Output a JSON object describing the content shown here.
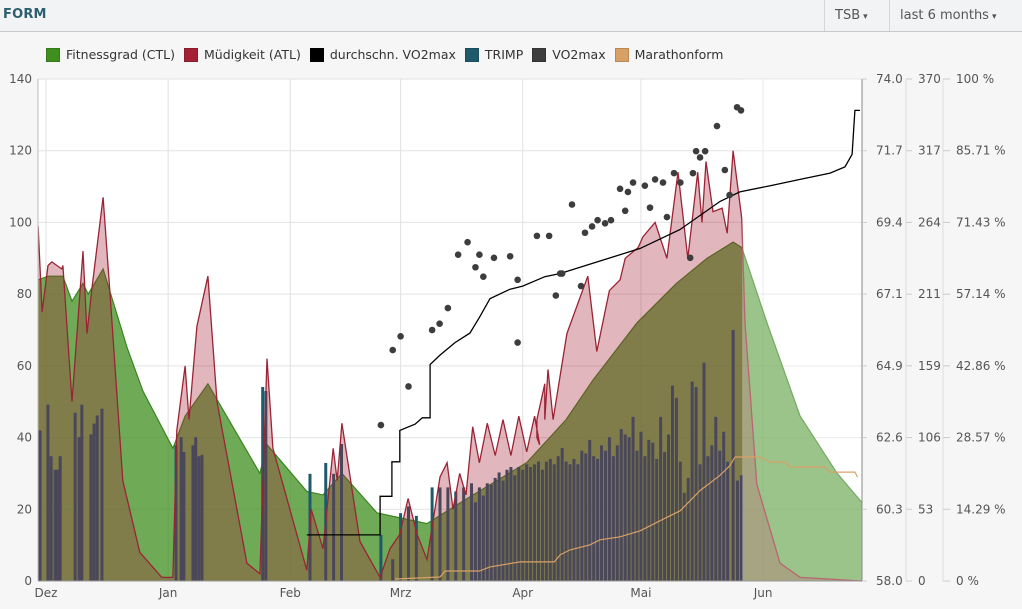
{
  "header": {
    "title": "FORM",
    "metric_select": "TSB",
    "range_select": "last 6 months"
  },
  "colors": {
    "ctl": "#3f8f1f",
    "atl": "#a32035",
    "avg_vo2": "#000000",
    "trimp": "#1f5a6b",
    "vo2": "#3d3d3d",
    "marathon": "#d9a066"
  },
  "chart_data": {
    "type": "area",
    "title": "FORM",
    "legend_position": "top-left",
    "legend": [
      "Fitnessgrad (CTL)",
      "Müdigkeit (ATL)",
      "durchschn. VO2max",
      "TRIMP",
      "VO2max",
      "Marathonform"
    ],
    "x_unit": "days since 1 Dec",
    "x_ticks": [
      {
        "day": 0,
        "label": "Dez"
      },
      {
        "day": 31,
        "label": "Jan"
      },
      {
        "day": 62,
        "label": "Feb"
      },
      {
        "day": 90,
        "label": "Mrz"
      },
      {
        "day": 121,
        "label": "Apr"
      },
      {
        "day": 151,
        "label": "Mai"
      },
      {
        "day": 182,
        "label": "Jun"
      }
    ],
    "xlim": [
      -2,
      207
    ],
    "y_left": {
      "ylim": [
        0,
        140
      ],
      "ticks": [
        "0",
        "20",
        "40",
        "60",
        "80",
        "100",
        "120",
        "140"
      ]
    },
    "y_vo2": {
      "ylim": [
        58,
        74
      ],
      "ticks": [
        "58.0",
        "60.3",
        "62.6",
        "64.9",
        "67.1",
        "69.4",
        "71.7",
        "74.0"
      ]
    },
    "y_trimp": {
      "ylim": [
        0,
        370
      ],
      "ticks": [
        "0",
        "53",
        "106",
        "159",
        "211",
        "264",
        "317",
        "370"
      ]
    },
    "y_pct": {
      "ylim": [
        0,
        100
      ],
      "ticks": [
        "0 %",
        "14.29 %",
        "28.57 %",
        "42.86 %",
        "57.14 %",
        "71.43 %",
        "85.71 %",
        "100 %"
      ]
    },
    "grid": true,
    "series": {
      "ctl": [
        [
          -2,
          84
        ],
        [
          0.5,
          85
        ],
        [
          4.3,
          85
        ],
        [
          6.6,
          78
        ],
        [
          9.4,
          83
        ],
        [
          10.7,
          80
        ],
        [
          14.5,
          87
        ],
        [
          20.6,
          65
        ],
        [
          24.6,
          53
        ],
        [
          32.2,
          37
        ],
        [
          35.3,
          46
        ],
        [
          41.1,
          55
        ],
        [
          54.3,
          30
        ],
        [
          56.1,
          38
        ],
        [
          66.2,
          25
        ],
        [
          70.3,
          24
        ],
        [
          75.1,
          30
        ],
        [
          84,
          19
        ],
        [
          96.7,
          16
        ],
        [
          106.9,
          23
        ],
        [
          122,
          33
        ],
        [
          132,
          45
        ],
        [
          138.8,
          56
        ],
        [
          150,
          72
        ],
        [
          160,
          83
        ],
        [
          167.8,
          90
        ],
        [
          174.4,
          94.5
        ],
        [
          176.6,
          93
        ],
        [
          183,
          72
        ],
        [
          191.4,
          46
        ],
        [
          200.8,
          30
        ],
        [
          207,
          22
        ]
      ],
      "atl": [
        [
          -2,
          99
        ],
        [
          -1,
          75
        ],
        [
          0.5,
          88
        ],
        [
          1.5,
          89
        ],
        [
          4,
          87
        ],
        [
          4.3,
          88
        ],
        [
          6.6,
          50
        ],
        [
          9.4,
          92
        ],
        [
          10.4,
          69
        ],
        [
          11.7,
          82
        ],
        [
          14.5,
          107
        ],
        [
          16.2,
          81
        ],
        [
          19.5,
          28
        ],
        [
          23.8,
          8
        ],
        [
          29.4,
          1
        ],
        [
          32.2,
          1
        ],
        [
          33.2,
          42
        ],
        [
          35.3,
          60
        ],
        [
          36.3,
          45
        ],
        [
          38.3,
          71
        ],
        [
          41.1,
          85
        ],
        [
          43.4,
          50
        ],
        [
          51,
          5
        ],
        [
          54.3,
          2
        ],
        [
          56.1,
          62
        ],
        [
          57.6,
          37
        ],
        [
          66.2,
          3
        ],
        [
          67.3,
          20
        ],
        [
          70.3,
          9
        ],
        [
          72.9,
          37
        ],
        [
          73.9,
          28
        ],
        [
          75.1,
          44
        ],
        [
          79.7,
          11
        ],
        [
          84.8,
          1
        ],
        [
          87.3,
          9
        ],
        [
          89.8,
          13
        ],
        [
          91.9,
          23
        ],
        [
          94.2,
          13
        ],
        [
          96.7,
          6
        ],
        [
          100,
          29
        ],
        [
          101.8,
          33
        ],
        [
          103.3,
          20
        ],
        [
          105,
          30
        ],
        [
          106.6,
          24
        ],
        [
          108.3,
          43
        ],
        [
          110,
          33
        ],
        [
          112,
          44
        ],
        [
          114,
          35
        ],
        [
          116,
          45
        ],
        [
          118,
          35
        ],
        [
          120,
          46
        ],
        [
          122,
          36
        ],
        [
          124,
          46
        ],
        [
          125.3,
          38
        ],
        [
          124.6,
          40
        ],
        [
          124.6,
          45
        ],
        [
          126.6,
          55
        ],
        [
          126.6,
          45
        ],
        [
          127.4,
          59
        ],
        [
          128.7,
          45
        ],
        [
          132.2,
          69
        ],
        [
          137.5,
          85
        ],
        [
          139.8,
          64
        ],
        [
          143,
          81
        ],
        [
          145.7,
          84
        ],
        [
          147,
          90
        ],
        [
          150.3,
          93
        ],
        [
          151.5,
          96
        ],
        [
          154.6,
          100
        ],
        [
          157.6,
          90
        ],
        [
          160.4,
          114
        ],
        [
          162.9,
          90
        ],
        [
          165.4,
          114
        ],
        [
          166.5,
          100
        ],
        [
          167.5,
          117
        ],
        [
          169.3,
          103
        ],
        [
          171.6,
          104
        ],
        [
          172.9,
          97
        ],
        [
          174.4,
          120
        ],
        [
          176.6,
          101
        ],
        [
          177.4,
          72
        ],
        [
          180.4,
          27
        ],
        [
          186.3,
          5
        ],
        [
          191.4,
          1
        ],
        [
          207,
          0
        ]
      ],
      "trimp": [
        [
          -1.5,
          111
        ],
        [
          0.5,
          130
        ],
        [
          1.3,
          92
        ],
        [
          2.3,
          82
        ],
        [
          3,
          82
        ],
        [
          3.6,
          92
        ],
        [
          7.4,
          124
        ],
        [
          8.4,
          106
        ],
        [
          9.1,
          130
        ],
        [
          11.4,
          108
        ],
        [
          12.2,
          116
        ],
        [
          13,
          122
        ],
        [
          14.2,
          127
        ],
        [
          33,
          100
        ],
        [
          34.3,
          106
        ],
        [
          35,
          95
        ],
        [
          37.3,
          100
        ],
        [
          38,
          106
        ],
        [
          38.8,
          92
        ],
        [
          39.6,
          93
        ],
        [
          55,
          143
        ],
        [
          55.8,
          140
        ],
        [
          67,
          79
        ],
        [
          71,
          87
        ],
        [
          73,
          79
        ],
        [
          75,
          101
        ],
        [
          85,
          34
        ],
        [
          88,
          16
        ],
        [
          90,
          50
        ],
        [
          92,
          55
        ],
        [
          94,
          48
        ],
        [
          98,
          69
        ],
        [
          100,
          69
        ],
        [
          102,
          69
        ],
        [
          104,
          66
        ],
        [
          106,
          69
        ],
        [
          108,
          72
        ],
        [
          109,
          58
        ],
        [
          110,
          69
        ],
        [
          111,
          63
        ],
        [
          112,
          72
        ],
        [
          113,
          71
        ],
        [
          114,
          76
        ],
        [
          115,
          80
        ],
        [
          116,
          74
        ],
        [
          117,
          82
        ],
        [
          118,
          84
        ],
        [
          119,
          78
        ],
        [
          120,
          84
        ],
        [
          121,
          82
        ],
        [
          122,
          86
        ],
        [
          123,
          84
        ],
        [
          124,
          86
        ],
        [
          125,
          88
        ],
        [
          126,
          82
        ],
        [
          127,
          88
        ],
        [
          128,
          90
        ],
        [
          129,
          86
        ],
        [
          130,
          92
        ],
        [
          131,
          98
        ],
        [
          132,
          88
        ],
        [
          133,
          86
        ],
        [
          134,
          90
        ],
        [
          135,
          86
        ],
        [
          136,
          96
        ],
        [
          137,
          94
        ],
        [
          138,
          104
        ],
        [
          139,
          92
        ],
        [
          140,
          90
        ],
        [
          141,
          100
        ],
        [
          142,
          96
        ],
        [
          143,
          106
        ],
        [
          144,
          92
        ],
        [
          145,
          100
        ],
        [
          146,
          112
        ],
        [
          147,
          108
        ],
        [
          148,
          106
        ],
        [
          149,
          121
        ],
        [
          150,
          96
        ],
        [
          151,
          110
        ],
        [
          152,
          92
        ],
        [
          153,
          104
        ],
        [
          154,
          102
        ],
        [
          155,
          90
        ],
        [
          156,
          121
        ],
        [
          157,
          95
        ],
        [
          158,
          108
        ],
        [
          159,
          144
        ],
        [
          160,
          135
        ],
        [
          161,
          88
        ],
        [
          162,
          65
        ],
        [
          163,
          76
        ],
        [
          164,
          147
        ],
        [
          165,
          143
        ],
        [
          166,
          86
        ],
        [
          167,
          161
        ],
        [
          168,
          92
        ],
        [
          169,
          100
        ],
        [
          170,
          121
        ],
        [
          171,
          96
        ],
        [
          172,
          110
        ],
        [
          173,
          88
        ],
        [
          174.4,
          185
        ],
        [
          175.5,
          74
        ],
        [
          176.5,
          78
        ]
      ],
      "avg_vo2": [
        [
          66.2,
          59.47
        ],
        [
          84.8,
          59.47
        ],
        [
          84.8,
          60.7
        ],
        [
          87.8,
          60.7
        ],
        [
          87.8,
          61.8
        ],
        [
          89.8,
          61.8
        ],
        [
          89.8,
          62.8
        ],
        [
          93.7,
          63.0
        ],
        [
          95.5,
          63.2
        ],
        [
          97.5,
          63.2
        ],
        [
          97.5,
          64.9
        ],
        [
          100,
          65.2
        ],
        [
          103.8,
          65.6
        ],
        [
          107.6,
          65.9
        ],
        [
          110,
          66.4
        ],
        [
          112.7,
          67.0
        ],
        [
          117.8,
          67.3
        ],
        [
          121,
          67.4
        ],
        [
          126.6,
          67.7
        ],
        [
          130.5,
          67.8
        ],
        [
          140.6,
          68.2
        ],
        [
          150.8,
          68.6
        ],
        [
          160.9,
          69.2
        ],
        [
          171.1,
          70.1
        ],
        [
          176.1,
          70.4
        ],
        [
          183.8,
          70.6
        ],
        [
          191.4,
          70.8
        ],
        [
          199,
          71.0
        ],
        [
          202.8,
          71.2
        ],
        [
          204.6,
          71.6
        ],
        [
          205.3,
          73.0
        ],
        [
          206.6,
          73.0
        ]
      ],
      "vo2": [
        [
          85,
          62.97
        ],
        [
          88,
          65.36
        ],
        [
          90,
          65.8
        ],
        [
          92,
          64.2
        ],
        [
          98,
          66
        ],
        [
          99.9,
          66.2
        ],
        [
          102,
          66.7
        ],
        [
          104.6,
          68.4
        ],
        [
          107,
          68.8
        ],
        [
          109,
          68
        ],
        [
          110,
          68.4
        ],
        [
          111,
          67.7
        ],
        [
          113.7,
          68.3
        ],
        [
          117.8,
          68.35
        ],
        [
          119.7,
          67.6
        ],
        [
          119.7,
          65.6
        ],
        [
          124.6,
          69
        ],
        [
          127.7,
          69
        ],
        [
          129.4,
          67.1
        ],
        [
          130.5,
          67.8
        ],
        [
          131,
          67.8
        ],
        [
          133.5,
          70
        ],
        [
          135.8,
          67.4
        ],
        [
          136.8,
          69.1
        ],
        [
          138.6,
          69.3
        ],
        [
          140,
          69.5
        ],
        [
          141.9,
          69.4
        ],
        [
          143.4,
          69.5
        ],
        [
          145.7,
          70.5
        ],
        [
          147,
          69.8
        ],
        [
          147.7,
          70.4
        ],
        [
          149,
          70.7
        ],
        [
          152,
          70.6
        ],
        [
          153.3,
          69.9
        ],
        [
          154.6,
          70.8
        ],
        [
          156.6,
          70.7
        ],
        [
          157.6,
          69.6
        ],
        [
          159.4,
          71
        ],
        [
          161,
          70.7
        ],
        [
          163.5,
          68.3
        ],
        [
          164.2,
          71
        ],
        [
          165,
          71.7
        ],
        [
          166,
          71.5
        ],
        [
          167.3,
          71.7
        ],
        [
          170.3,
          72.5
        ],
        [
          172.3,
          71.1
        ],
        [
          173.5,
          70.3
        ],
        [
          175.4,
          73.1
        ],
        [
          176.4,
          73
        ]
      ],
      "marathon": [
        [
          88.6,
          0.4
        ],
        [
          100,
          0.8
        ],
        [
          101.3,
          2
        ],
        [
          110,
          2
        ],
        [
          112.7,
          2.8
        ],
        [
          120.3,
          3.8
        ],
        [
          129,
          3.8
        ],
        [
          130.5,
          5.2
        ],
        [
          133,
          6.2
        ],
        [
          138,
          7.2
        ],
        [
          140.6,
          8.2
        ],
        [
          145.7,
          8.8
        ],
        [
          150.8,
          10
        ],
        [
          155.8,
          12
        ],
        [
          161,
          14
        ],
        [
          166,
          18
        ],
        [
          171,
          21
        ],
        [
          173.6,
          23
        ],
        [
          174.9,
          24.7
        ],
        [
          181.2,
          24.7
        ],
        [
          183.8,
          23.7
        ],
        [
          187.6,
          23.7
        ],
        [
          188.8,
          22.7
        ],
        [
          197.7,
          22.7
        ],
        [
          199,
          21.7
        ],
        [
          205.3,
          21.7
        ],
        [
          206,
          20.7
        ]
      ]
    }
  }
}
